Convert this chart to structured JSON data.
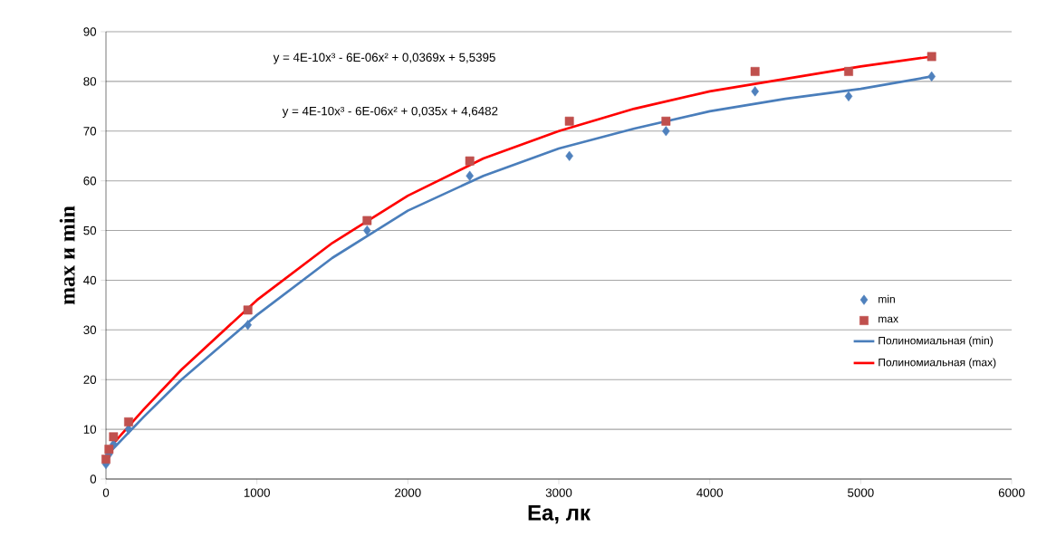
{
  "chart_data": {
    "type": "scatter",
    "xlabel": "Ea, лк",
    "ylabel": "max и min",
    "xlim": [
      0,
      6000
    ],
    "xticks": [
      0,
      1000,
      2000,
      3000,
      4000,
      5000,
      6000
    ],
    "ylim": [
      0,
      90
    ],
    "yticks": [
      0,
      10,
      20,
      30,
      40,
      50,
      60,
      70,
      80,
      90
    ],
    "grid": "y",
    "legend": "right",
    "annotations": [
      "y = 4E-10x³ - 6E-06x² + 0,0369x + 5,5395",
      "y = 4E-10x³ - 6E-06x² + 0,035x + 4,6482"
    ],
    "series": [
      {
        "name": "min",
        "marker": "diamond",
        "color": "#4f81bd",
        "x": [
          0,
          20,
          50,
          150,
          940,
          1730,
          2410,
          3070,
          3710,
          4300,
          4920,
          5470
        ],
        "values": [
          3,
          5,
          7,
          10,
          31,
          50,
          61,
          65,
          70,
          78,
          77,
          81
        ]
      },
      {
        "name": "max",
        "marker": "square",
        "color": "#c0504d",
        "x": [
          0,
          20,
          50,
          150,
          940,
          1730,
          2410,
          3070,
          3710,
          4300,
          4920,
          5470
        ],
        "values": [
          4,
          6,
          8.5,
          11.5,
          34,
          52,
          64,
          72,
          72,
          82,
          82,
          85
        ]
      },
      {
        "name": "Полиномиальная (min)",
        "type": "line",
        "marker": "none",
        "color": "#4a7ebb",
        "x": [
          0,
          250,
          500,
          1000,
          1500,
          2000,
          2500,
          3000,
          3500,
          4000,
          4500,
          5000,
          5470
        ],
        "values": [
          4.6,
          12.5,
          20,
          33,
          44.5,
          54,
          61,
          66.5,
          70.5,
          74,
          76.5,
          78.5,
          81
        ]
      },
      {
        "name": "Полиномиальная (max)",
        "type": "line",
        "marker": "none",
        "color": "#ff0000",
        "x": [
          0,
          250,
          500,
          1000,
          1500,
          2000,
          2500,
          3000,
          3500,
          4000,
          4500,
          5000,
          5470
        ],
        "values": [
          5.5,
          14,
          22,
          36,
          47.5,
          57,
          64.5,
          70,
          74.5,
          78,
          80.5,
          83,
          85
        ]
      }
    ]
  }
}
